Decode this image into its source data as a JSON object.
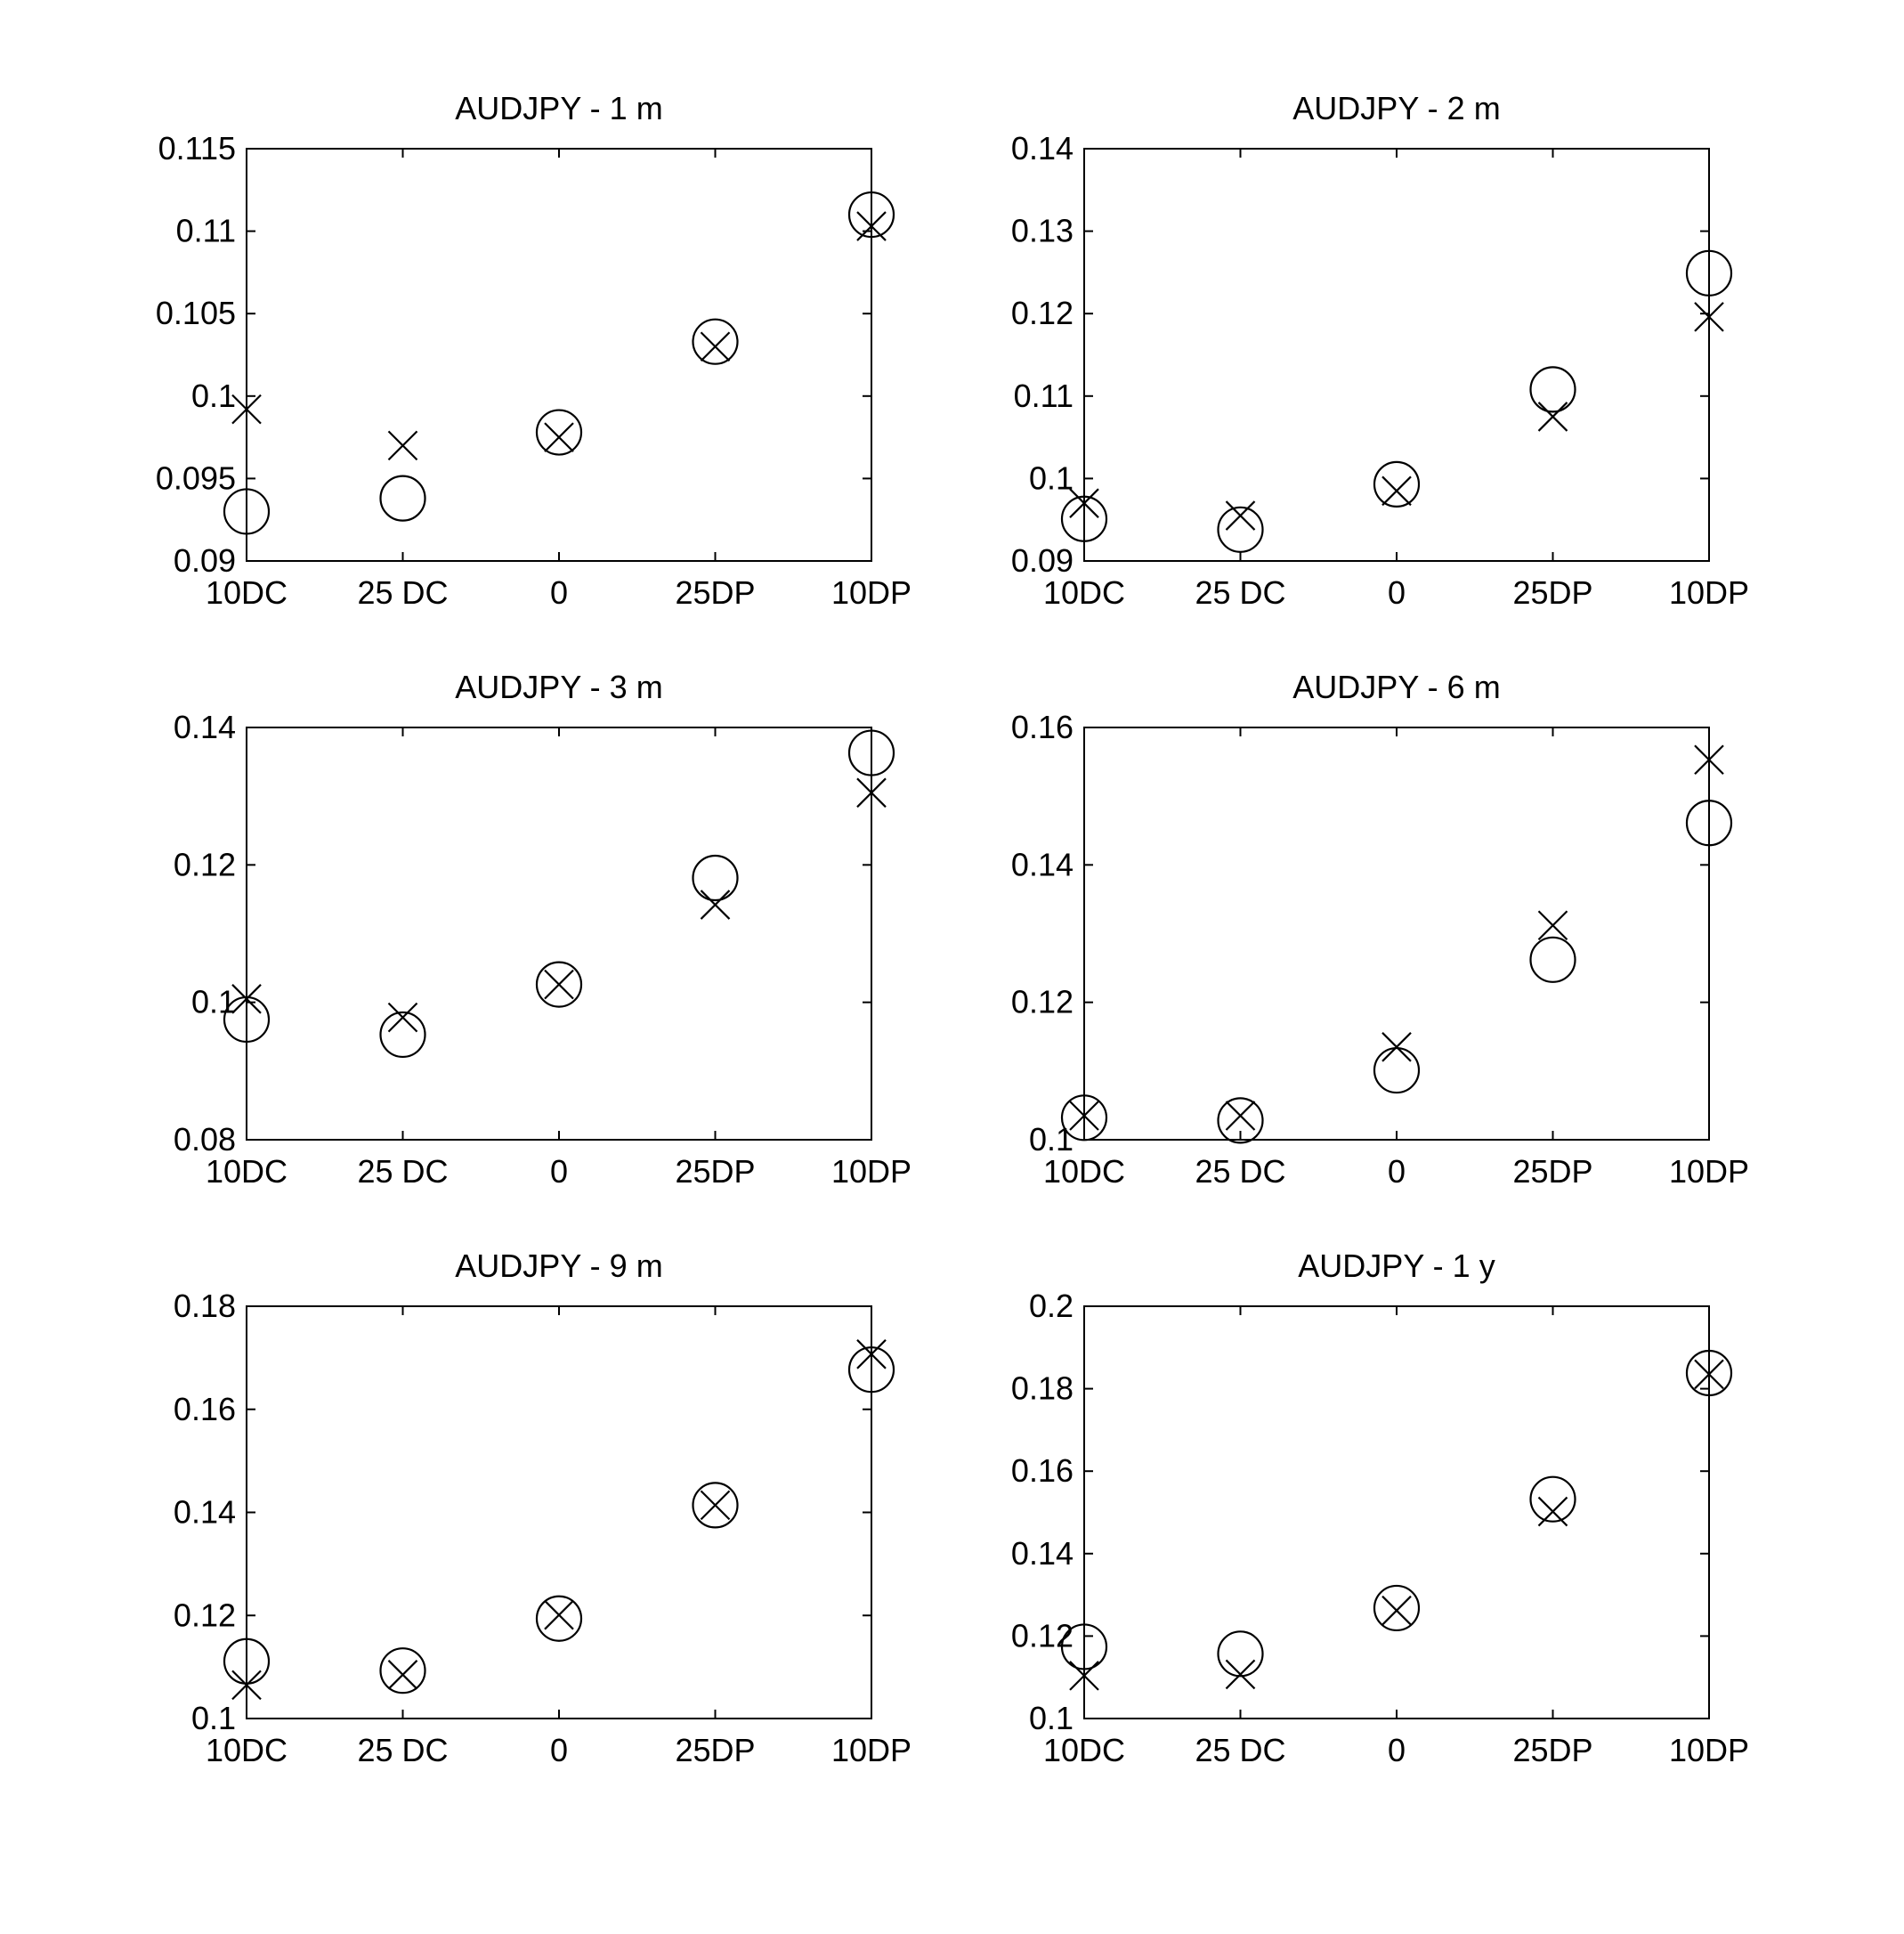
{
  "chart_data": [
    {
      "type": "scatter",
      "title": "AUDJPY - 1 m",
      "categories": [
        "10DC",
        "25 DC",
        "0",
        "25DP",
        "10DP"
      ],
      "yticks": [
        "0.09",
        "0.095",
        "0.1",
        "0.105",
        "0.11",
        "0.115"
      ],
      "ylim": [
        0.09,
        0.115
      ],
      "grid": false,
      "series": [
        {
          "marker": "circle",
          "values": [
            0.093,
            0.0938,
            0.0978,
            0.1033,
            0.111
          ]
        },
        {
          "marker": "x",
          "values": [
            0.0992,
            0.097,
            0.0975,
            0.103,
            0.1103
          ]
        }
      ]
    },
    {
      "type": "scatter",
      "title": "AUDJPY - 2 m",
      "categories": [
        "10DC",
        "25 DC",
        "0",
        "25DP",
        "10DP"
      ],
      "yticks": [
        "0.09",
        "0.1",
        "0.11",
        "0.12",
        "0.13",
        "0.14"
      ],
      "ylim": [
        0.09,
        0.14
      ],
      "grid": false,
      "series": [
        {
          "marker": "circle",
          "values": [
            0.0951,
            0.0938,
            0.0993,
            0.1108,
            0.1249
          ]
        },
        {
          "marker": "x",
          "values": [
            0.097,
            0.0955,
            0.0985,
            0.1075,
            0.1196
          ]
        }
      ]
    },
    {
      "type": "scatter",
      "title": "AUDJPY - 3 m",
      "categories": [
        "10DC",
        "25 DC",
        "0",
        "25DP",
        "10DP"
      ],
      "yticks": [
        "0.08",
        "0.1",
        "0.12",
        "0.14"
      ],
      "ylim": [
        0.08,
        0.14
      ],
      "grid": false,
      "series": [
        {
          "marker": "circle",
          "values": [
            0.0975,
            0.0953,
            0.1026,
            0.1181,
            0.1363
          ]
        },
        {
          "marker": "x",
          "values": [
            0.1005,
            0.0978,
            0.1026,
            0.1142,
            0.1305
          ]
        }
      ]
    },
    {
      "type": "scatter",
      "title": "AUDJPY - 6 m",
      "categories": [
        "10DC",
        "25 DC",
        "0",
        "25DP",
        "10DP"
      ],
      "yticks": [
        "0.1",
        "0.12",
        "0.14",
        "0.16"
      ],
      "ylim": [
        0.1,
        0.16
      ],
      "grid": false,
      "series": [
        {
          "marker": "circle",
          "values": [
            0.1032,
            0.1028,
            0.1101,
            0.1262,
            0.1461
          ]
        },
        {
          "marker": "x",
          "values": [
            0.1035,
            0.1035,
            0.1135,
            0.1312,
            0.1553
          ]
        }
      ]
    },
    {
      "type": "scatter",
      "title": "AUDJPY - 9 m",
      "categories": [
        "10DC",
        "25 DC",
        "0",
        "25DP",
        "10DP"
      ],
      "yticks": [
        "0.1",
        "0.12",
        "0.14",
        "0.16",
        "0.18"
      ],
      "ylim": [
        0.1,
        0.18
      ],
      "grid": false,
      "series": [
        {
          "marker": "circle",
          "values": [
            0.1111,
            0.1093,
            0.1194,
            0.1414,
            0.1677
          ]
        },
        {
          "marker": "x",
          "values": [
            0.1065,
            0.1085,
            0.1201,
            0.1414,
            0.1707
          ]
        }
      ]
    },
    {
      "type": "scatter",
      "title": "AUDJPY - 1 y",
      "categories": [
        "10DC",
        "25 DC",
        "0",
        "25DP",
        "10DP"
      ],
      "yticks": [
        "0.1",
        "0.12",
        "0.14",
        "0.16",
        "0.18",
        "0.2"
      ],
      "ylim": [
        0.1,
        0.2
      ],
      "grid": false,
      "series": [
        {
          "marker": "circle",
          "values": [
            0.1174,
            0.1157,
            0.1268,
            0.1532,
            0.1838
          ]
        },
        {
          "marker": "x",
          "values": [
            0.1104,
            0.1107,
            0.1262,
            0.1502,
            0.1835
          ]
        }
      ]
    }
  ]
}
